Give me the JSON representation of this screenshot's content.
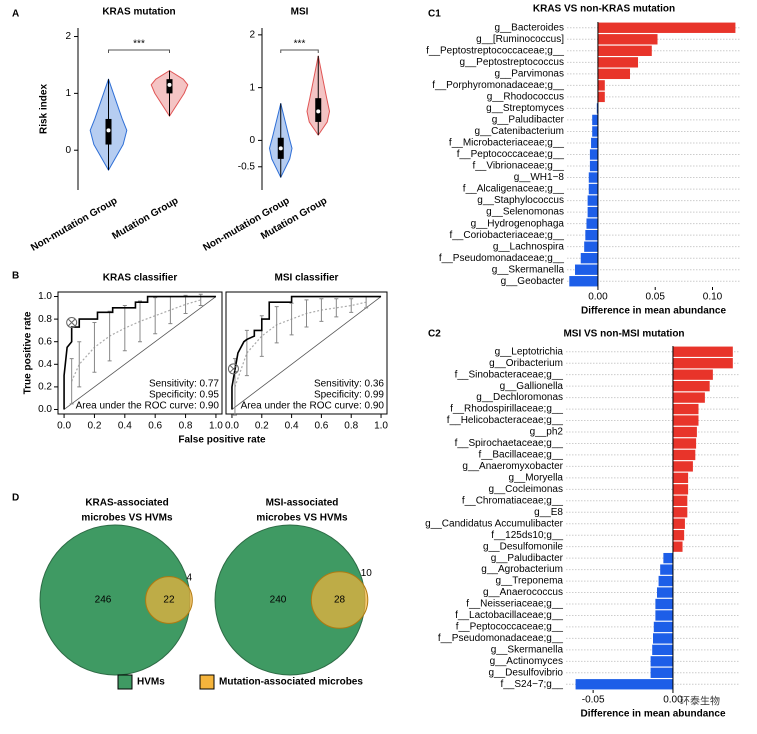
{
  "chart_data": [
    {
      "type": "violin",
      "panel": "A",
      "title": "KRAS mutation",
      "y_label": "Risk index",
      "categories": [
        "Non-mutation Group",
        "Mutation Group"
      ],
      "colors": [
        "#2f6fd6",
        "#e05555"
      ],
      "stats": [
        {
          "min": -0.35,
          "q1": 0.1,
          "median": 0.35,
          "q3": 0.55,
          "max": 1.25
        },
        {
          "min": 0.6,
          "q1": 1.0,
          "median": 1.15,
          "q3": 1.25,
          "max": 1.4
        }
      ],
      "significance": "***",
      "ylim": [
        -0.7,
        2.15
      ],
      "yticks": [
        0,
        1,
        2
      ]
    },
    {
      "type": "violin",
      "title": "MSI",
      "categories": [
        "Non-mutation Group",
        "Mutation Group"
      ],
      "colors": [
        "#2f6fd6",
        "#e05555"
      ],
      "stats": [
        {
          "min": -0.7,
          "q1": -0.35,
          "median": -0.15,
          "q3": 0.05,
          "max": 0.7
        },
        {
          "min": 0.1,
          "q1": 0.35,
          "median": 0.55,
          "q3": 0.8,
          "max": 1.6
        }
      ],
      "significance": "***",
      "ylim": [
        -0.94,
        2.13
      ],
      "yticks": [
        -0.5,
        0,
        1,
        2
      ]
    },
    {
      "type": "roc",
      "panel": "B",
      "title": "KRAS classifier",
      "x_label": "False positive rate",
      "y_label": "True positive rate",
      "x": [
        0,
        0,
        0.02,
        0.05,
        0.05,
        0.1,
        0.1,
        0.22,
        0.22,
        0.32,
        0.32,
        0.47,
        0.47,
        0.55,
        0.55,
        1
      ],
      "values": [
        0,
        0.3,
        0.55,
        0.6,
        0.73,
        0.73,
        0.8,
        0.8,
        0.86,
        0.86,
        0.9,
        0.9,
        0.95,
        0.95,
        1,
        1
      ],
      "mean_curve": {
        "x": [
          0.05,
          0.1,
          0.2,
          0.3,
          0.4,
          0.5,
          0.6,
          0.7,
          0.8,
          0.9
        ],
        "values": [
          0.25,
          0.4,
          0.55,
          0.65,
          0.72,
          0.78,
          0.83,
          0.88,
          0.93,
          0.97
        ],
        "errors": [
          0.2,
          0.2,
          0.22,
          0.22,
          0.2,
          0.18,
          0.16,
          0.12,
          0.08,
          0.05
        ]
      },
      "cutoff": [
        0.05,
        0.77
      ],
      "annotations": [
        "Sensitivity: 0.77",
        "Specificity: 0.95",
        "Area under the ROC curve: 0.90"
      ],
      "xlim": [
        -0.04,
        1.04
      ],
      "ylim": [
        -0.04,
        1.04
      ],
      "xticks": [
        {
          "value": 0,
          "label": "0.0"
        },
        0.2,
        0.4,
        0.6,
        0.8,
        {
          "value": 1,
          "label": "1.0"
        }
      ],
      "yticks": [
        {
          "value": 0,
          "label": "0.0"
        },
        0.2,
        0.4,
        0.6,
        0.8,
        {
          "value": 1,
          "label": "1.0"
        }
      ]
    },
    {
      "type": "roc",
      "title": "MSI classifier",
      "x": [
        0,
        0,
        0.02,
        0.04,
        0.06,
        0.08,
        0.1,
        0.15,
        0.15,
        0.2,
        0.2,
        0.25,
        0.25,
        0.4,
        0.4,
        1
      ],
      "values": [
        0,
        0.2,
        0.35,
        0.5,
        0.55,
        0.6,
        0.62,
        0.65,
        0.7,
        0.7,
        0.8,
        0.8,
        0.95,
        0.95,
        1,
        1
      ],
      "mean_curve": {
        "x": [
          0.02,
          0.1,
          0.2,
          0.3,
          0.4,
          0.5,
          0.6,
          0.7,
          0.8,
          0.9
        ],
        "values": [
          0.2,
          0.5,
          0.65,
          0.75,
          0.8,
          0.85,
          0.88,
          0.9,
          0.92,
          0.95
        ],
        "errors": [
          0.25,
          0.2,
          0.18,
          0.16,
          0.14,
          0.12,
          0.1,
          0.08,
          0.06,
          0.05
        ]
      },
      "cutoff": [
        0.01,
        0.36
      ],
      "annotations": [
        "Sensitivity: 0.36",
        "Specificity: 0.99",
        "Area under the ROC curve: 0.90"
      ],
      "xlim": [
        -0.04,
        1.04
      ],
      "ylim": [
        -0.04,
        1.04
      ],
      "xticks": [
        {
          "value": 0,
          "label": "0.0"
        },
        0.2,
        0.4,
        0.6,
        0.8,
        {
          "value": 1,
          "label": "1.0"
        }
      ]
    },
    {
      "type": "venn",
      "panel": "D",
      "title": [
        "KRAS-associated",
        "microbes VS HVMs"
      ],
      "values": [
        246,
        22,
        4
      ],
      "sets": [
        {
          "name": "HVMs",
          "color": "#3f9a63"
        },
        {
          "name": "Mutation-associated microbes",
          "color": "#f5b43c"
        }
      ]
    },
    {
      "type": "venn",
      "title": [
        "MSI-associated",
        "microbes VS HVMs"
      ],
      "values": [
        240,
        28,
        10
      ],
      "colors": [
        "#3f9a63",
        "#f5b43c"
      ]
    },
    {
      "type": "hbar",
      "panel": "C1",
      "title": "KRAS VS non-KRAS mutation",
      "x_label": "Difference in mean abundance",
      "categories": [
        "g__Bacteroides",
        "g__[Ruminococcus]",
        "f__Peptostreptococcaceae;g__",
        "g__Peptostreptococcus",
        "g__Parvimonas",
        "f__Porphyromonadaceae;g__",
        "g__Rhodococcus",
        "g__Streptomyces",
        "g__Paludibacter",
        "g__Catenibacterium",
        "f__Microbacteriaceae;g__",
        "f__Peptococcaceae;g__",
        "f__Vibrionaceae;g__",
        "g__WH1−8",
        "f__Alcaligenaceae;g__",
        "g__Staphylococcus",
        "g__Selenomonas",
        "g__Hydrogenophaga",
        "f__Coriobacteriaceae;g__",
        "g__Lachnospira",
        "f__Pseudomonadaceae;g__",
        "g__Skermanella",
        "g__Geobacter"
      ],
      "values": [
        0.12,
        0.052,
        0.047,
        0.035,
        0.028,
        0.006,
        0.006,
        -0.001,
        -0.005,
        -0.005,
        -0.006,
        -0.007,
        -0.007,
        -0.008,
        -0.008,
        -0.009,
        -0.009,
        -0.01,
        -0.011,
        -0.012,
        -0.015,
        -0.02,
        -0.025
      ],
      "color_positive": "#e8342a",
      "color_negative": "#1d5ee8",
      "xlim": [
        -0.027,
        0.124
      ],
      "xticks": [
        {
          "value": 0,
          "label": "0.00"
        },
        0.05,
        {
          "value": 0.1,
          "label": "0.10"
        }
      ]
    },
    {
      "type": "hbar",
      "panel": "C2",
      "title": "MSI VS non-MSI mutation",
      "x_label": "Difference in mean abundance",
      "categories": [
        "g__Leptotrichia",
        "g__Oribacterium",
        "f__Sinobacteraceae;g__",
        "g__Gallionella",
        "g__Dechloromonas",
        "f__Rhodospirillaceae;g__",
        "f__Helicobacteraceae;g__",
        "g__ph2",
        "f__Spirochaetaceae;g__",
        "f__Bacillaceae;g__",
        "g__Anaeromyxobacter",
        "g__Moryella",
        "g__Cocleimonas",
        "f__Chromatiaceae;g__",
        "g__E8",
        "g__Candidatus Accumulibacter",
        "f__125ds10;g__",
        "g__Desulfomonile",
        "g__Paludibacter",
        "g__Agrobacterium",
        "g__Treponema",
        "g__Anaerococcus",
        "f__Neisseriaceae;g__",
        "f__Lactobacillaceae;g__",
        "f__Peptococcaceae;g__",
        "f__Pseudomonadaceae;g__",
        "g__Skermanella",
        "g__Actinomyces",
        "g__Desulfovibrio",
        "f__S24−7;g__"
      ],
      "values": [
        0.0375,
        0.0375,
        0.025,
        0.023,
        0.02,
        0.016,
        0.016,
        0.015,
        0.0145,
        0.014,
        0.0125,
        0.0095,
        0.0095,
        0.009,
        0.009,
        0.0075,
        0.007,
        0.006,
        -0.006,
        -0.008,
        -0.009,
        -0.01,
        -0.011,
        -0.011,
        -0.012,
        -0.0125,
        -0.013,
        -0.014,
        -0.014,
        -0.061
      ],
      "color_positive": "#e8342a",
      "color_negative": "#1d5ee8",
      "xlim": [
        -0.067,
        0.042
      ],
      "xticks": [
        -0.05,
        {
          "value": 0,
          "label": "0.00"
        }
      ]
    }
  ],
  "watermark": "环泰生物"
}
